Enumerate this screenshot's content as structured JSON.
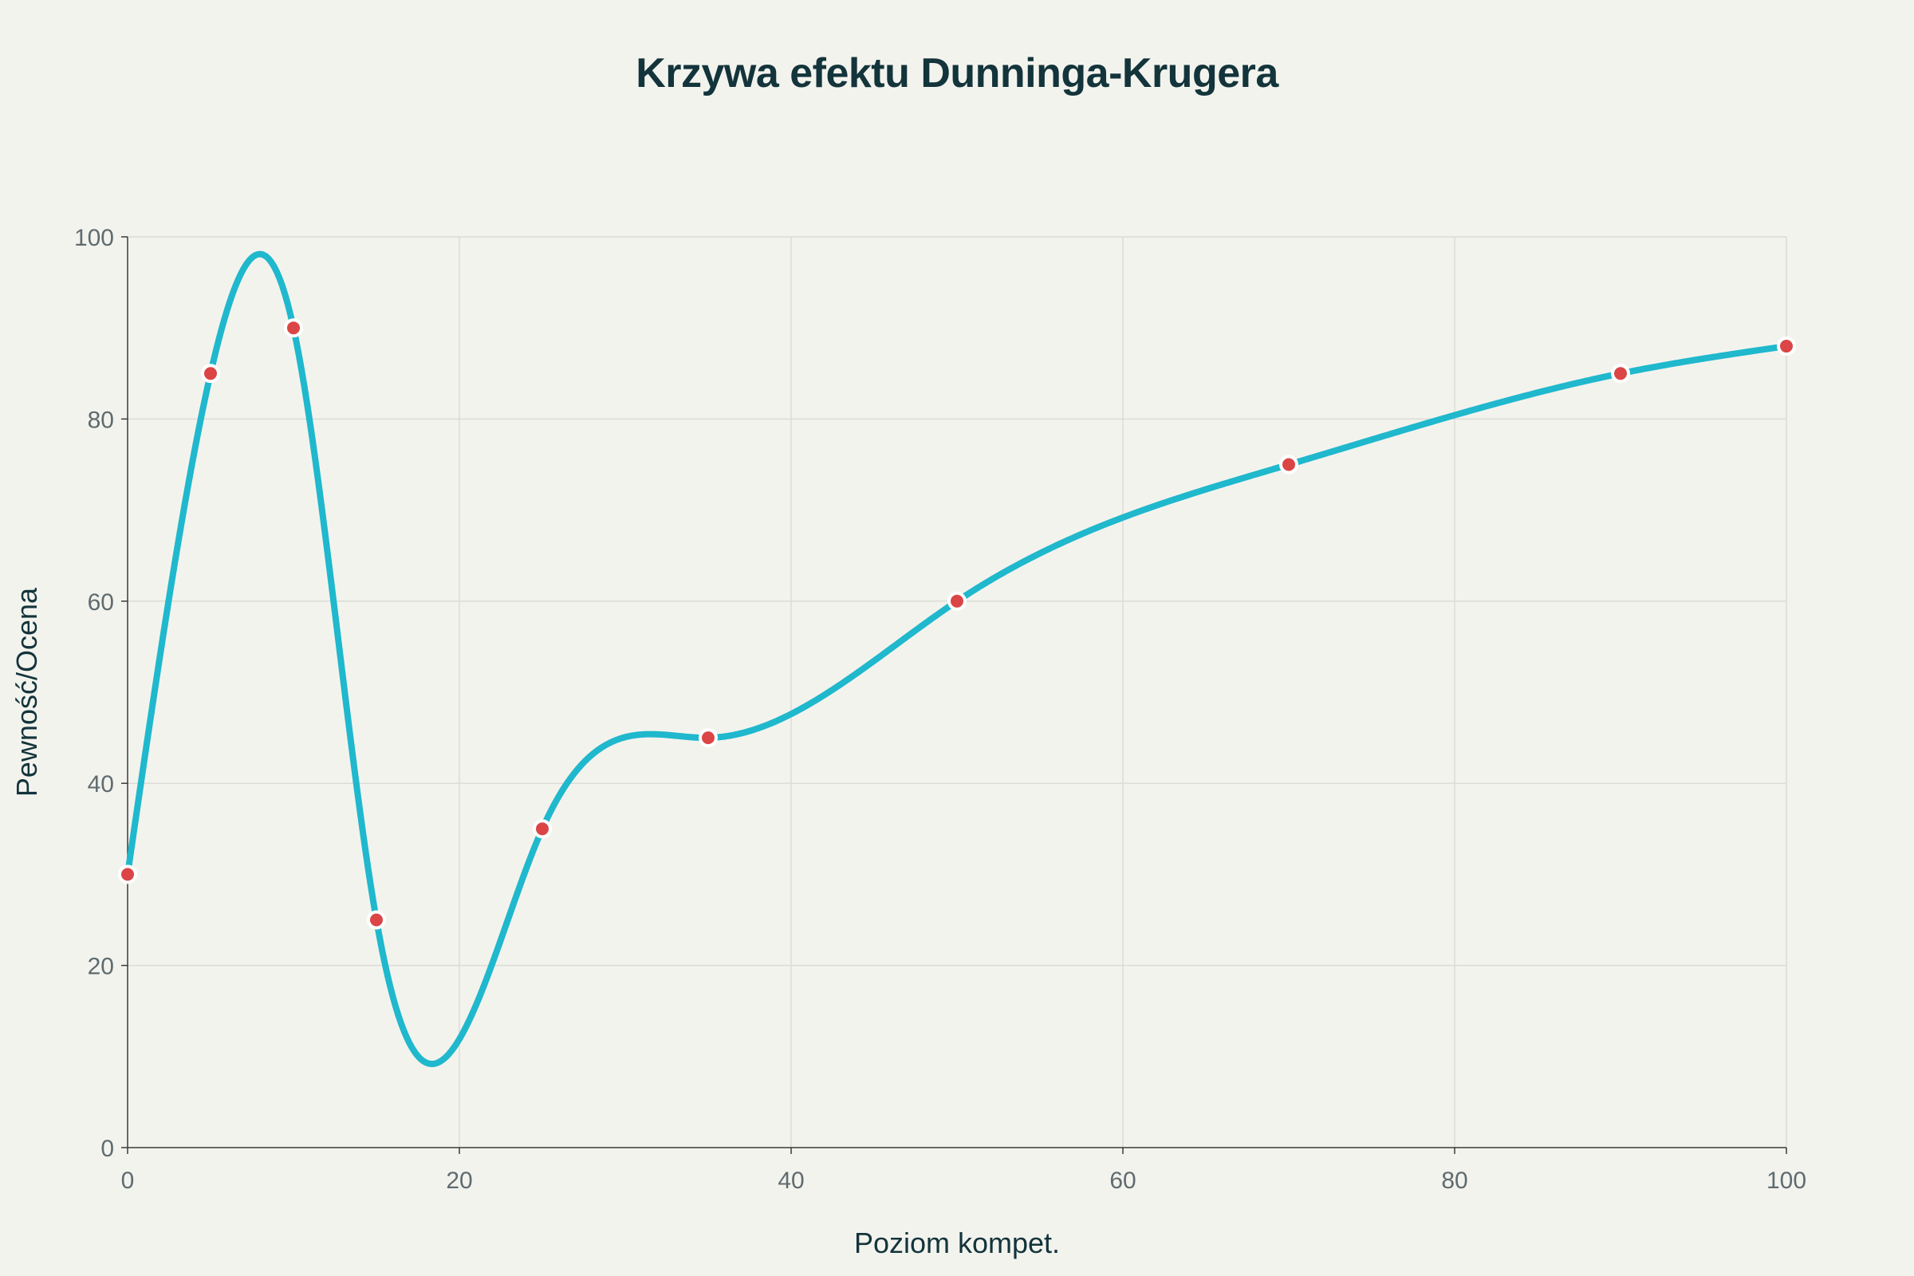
{
  "chart_data": {
    "type": "line",
    "title": "Krzywa efektu Dunninga-Krugera",
    "xlabel": "Poziom kompet.",
    "ylabel": "Pewność/Ocena",
    "xlim": [
      0,
      100
    ],
    "ylim": [
      0,
      100
    ],
    "x_ticks": [
      0,
      20,
      40,
      60,
      80,
      100
    ],
    "y_ticks": [
      0,
      20,
      40,
      60,
      80,
      100
    ],
    "grid": true,
    "series": [
      {
        "x": [
          0,
          5,
          10,
          15,
          25,
          35,
          50,
          70,
          90,
          100
        ],
        "y": [
          30,
          85,
          90,
          25,
          35,
          45,
          60,
          75,
          85,
          88
        ],
        "line_color": "#1fb8cd",
        "marker_color": "#db4545",
        "smoothing": "spline"
      }
    ]
  }
}
